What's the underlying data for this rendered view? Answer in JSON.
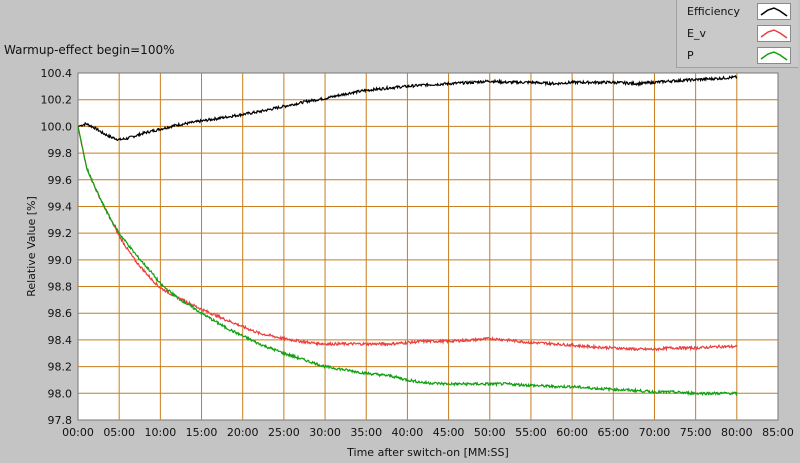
{
  "chart_data": {
    "type": "line",
    "title": "Warmup-effect begin=100%",
    "xlabel": "Time after switch-on [MM:SS]",
    "ylabel": "Relative Value [%]",
    "xlim": [
      0,
      85
    ],
    "ylim": [
      97.8,
      100.4
    ],
    "x_unit": "minutes",
    "x_ticks": [
      "00:00",
      "05:00",
      "10:00",
      "15:00",
      "20:00",
      "25:00",
      "30:00",
      "35:00",
      "40:00",
      "45:00",
      "50:00",
      "55:00",
      "60:00",
      "65:00",
      "70:00",
      "75:00",
      "80:00",
      "85:00"
    ],
    "y_ticks": [
      "97.8",
      "98.0",
      "98.2",
      "98.4",
      "98.6",
      "98.8",
      "99.0",
      "99.2",
      "99.4",
      "99.6",
      "99.8",
      "100.0",
      "100.2",
      "100.4"
    ],
    "grid": true,
    "legend_position": "top-right",
    "series": [
      {
        "name": "Efficiency",
        "color": "#000000",
        "x": [
          0,
          1,
          2,
          3,
          4,
          5,
          6,
          7,
          8,
          10,
          12,
          15,
          18,
          20,
          22,
          25,
          28,
          30,
          33,
          35,
          38,
          40,
          42,
          45,
          48,
          50,
          52,
          55,
          58,
          60,
          62,
          65,
          68,
          70,
          72,
          75,
          78,
          80
        ],
        "y": [
          100.0,
          100.02,
          99.99,
          99.95,
          99.92,
          99.9,
          99.91,
          99.93,
          99.95,
          99.98,
          100.01,
          100.04,
          100.07,
          100.09,
          100.11,
          100.15,
          100.19,
          100.21,
          100.25,
          100.27,
          100.29,
          100.3,
          100.31,
          100.32,
          100.33,
          100.34,
          100.33,
          100.33,
          100.32,
          100.33,
          100.33,
          100.33,
          100.32,
          100.33,
          100.34,
          100.35,
          100.36,
          100.37
        ]
      },
      {
        "name": "E_v",
        "color": "#e84040",
        "x": [
          0,
          0.5,
          1,
          2,
          3,
          4,
          5,
          6,
          7,
          8,
          9,
          10,
          12,
          15,
          18,
          20,
          22,
          25,
          28,
          30,
          33,
          35,
          38,
          40,
          42,
          45,
          48,
          50,
          52,
          55,
          58,
          60,
          62,
          65,
          68,
          70,
          72,
          75,
          78,
          80
        ],
        "y": [
          100.0,
          99.85,
          99.7,
          99.55,
          99.42,
          99.3,
          99.18,
          99.08,
          98.99,
          98.92,
          98.85,
          98.79,
          98.72,
          98.63,
          98.55,
          98.5,
          98.45,
          98.41,
          98.38,
          98.37,
          98.37,
          98.37,
          98.37,
          98.38,
          98.39,
          98.39,
          98.4,
          98.41,
          98.4,
          98.38,
          98.37,
          98.36,
          98.35,
          98.34,
          98.33,
          98.33,
          98.34,
          98.34,
          98.35,
          98.35
        ]
      },
      {
        "name": "P",
        "color": "#10a010",
        "x": [
          0,
          0.5,
          1,
          2,
          3,
          4,
          5,
          6,
          7,
          8,
          9,
          10,
          12,
          15,
          18,
          20,
          22,
          25,
          28,
          30,
          33,
          35,
          38,
          40,
          42,
          45,
          48,
          50,
          52,
          55,
          58,
          60,
          62,
          65,
          68,
          70,
          72,
          75,
          78,
          80
        ],
        "y": [
          100.0,
          99.85,
          99.7,
          99.55,
          99.42,
          99.3,
          99.2,
          99.12,
          99.04,
          98.97,
          98.9,
          98.82,
          98.72,
          98.6,
          98.49,
          98.43,
          98.37,
          98.3,
          98.24,
          98.2,
          98.17,
          98.15,
          98.13,
          98.1,
          98.08,
          98.07,
          98.07,
          98.07,
          98.07,
          98.06,
          98.05,
          98.05,
          98.04,
          98.03,
          98.02,
          98.01,
          98.01,
          98.0,
          98.0,
          98.0
        ]
      }
    ]
  }
}
